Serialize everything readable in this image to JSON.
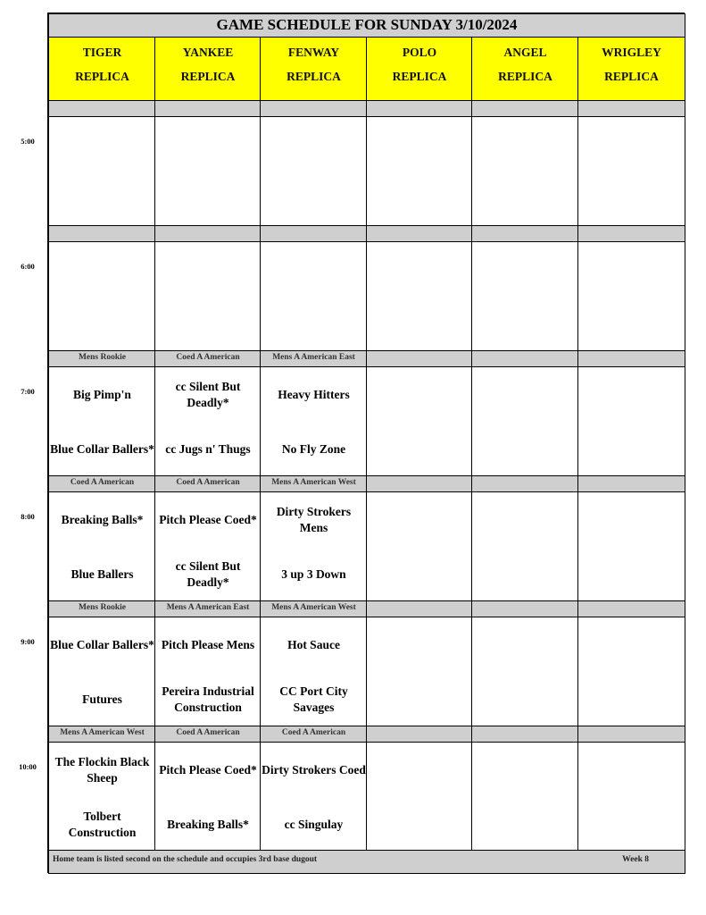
{
  "title": "GAME SCHEDULE FOR SUNDAY 3/10/2024",
  "fields": [
    {
      "name": "TIGER",
      "sub": "REPLICA"
    },
    {
      "name": "YANKEE",
      "sub": "REPLICA"
    },
    {
      "name": "FENWAY",
      "sub": "REPLICA"
    },
    {
      "name": "POLO",
      "sub": "REPLICA"
    },
    {
      "name": "ANGEL",
      "sub": "REPLICA"
    },
    {
      "name": "WRIGLEY",
      "sub": "REPLICA"
    }
  ],
  "slots": [
    {
      "time": "5:00",
      "divisions": [
        "",
        "",
        "",
        "",
        "",
        ""
      ],
      "games": [
        [
          "",
          ""
        ],
        [
          "",
          ""
        ],
        [
          "",
          ""
        ],
        [
          "",
          ""
        ],
        [
          "",
          ""
        ],
        [
          "",
          ""
        ]
      ]
    },
    {
      "time": "6:00",
      "divisions": [
        "",
        "",
        "",
        "",
        "",
        ""
      ],
      "games": [
        [
          "",
          ""
        ],
        [
          "",
          ""
        ],
        [
          "",
          ""
        ],
        [
          "",
          ""
        ],
        [
          "",
          ""
        ],
        [
          "",
          ""
        ]
      ]
    },
    {
      "time": "7:00",
      "divisions": [
        "Mens Rookie",
        "Coed A American",
        "Mens A American East",
        "",
        "",
        ""
      ],
      "games": [
        [
          "Big Pimp'n",
          "Blue Collar Ballers*"
        ],
        [
          "cc Silent But Deadly*",
          "cc Jugs n' Thugs"
        ],
        [
          "Heavy Hitters",
          "No Fly Zone"
        ],
        [
          "",
          ""
        ],
        [
          "",
          ""
        ],
        [
          "",
          ""
        ]
      ]
    },
    {
      "time": "8:00",
      "divisions": [
        "Coed A American",
        "Coed A American",
        "Mens A American West",
        "",
        "",
        ""
      ],
      "games": [
        [
          "Breaking Balls*",
          "Blue Ballers"
        ],
        [
          "Pitch Please Coed*",
          "cc Silent But Deadly*"
        ],
        [
          "Dirty Strokers Mens",
          "3 up 3 Down"
        ],
        [
          "",
          ""
        ],
        [
          "",
          ""
        ],
        [
          "",
          ""
        ]
      ]
    },
    {
      "time": "9:00",
      "divisions": [
        "Mens Rookie",
        "Mens A American East",
        "Mens A American West",
        "",
        "",
        ""
      ],
      "games": [
        [
          "Blue Collar Ballers*",
          "Futures"
        ],
        [
          "Pitch Please Mens",
          "Pereira Industrial Construction"
        ],
        [
          "Hot Sauce",
          "CC Port City Savages"
        ],
        [
          "",
          ""
        ],
        [
          "",
          ""
        ],
        [
          "",
          ""
        ]
      ]
    },
    {
      "time": "10:00",
      "divisions": [
        "Mens A American West",
        "Coed A American",
        "Coed A American",
        "",
        "",
        ""
      ],
      "games": [
        [
          "The Flockin Black Sheep",
          "Tolbert Construction"
        ],
        [
          "Pitch Please Coed*",
          "Breaking Balls*"
        ],
        [
          "Dirty Strokers Coed",
          "cc Singulay"
        ],
        [
          "",
          ""
        ],
        [
          "",
          ""
        ],
        [
          "",
          ""
        ]
      ]
    }
  ],
  "footer": {
    "note": "Home team is listed second on the schedule and occupies 3rd base dugout",
    "week": "Week 8"
  },
  "colors": {
    "header": "#ffff00",
    "bar": "#cfcfcf"
  }
}
